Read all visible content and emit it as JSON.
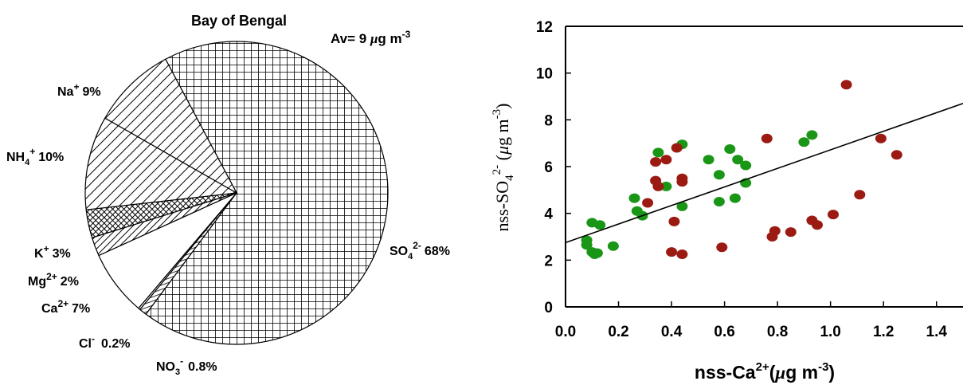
{
  "chart_data": [
    {
      "type": "pie",
      "title": "Bay of Bengal",
      "annotation": {
        "prefix": "Av= 9 ",
        "mu": "μ",
        "unit": "g m",
        "exp": "-3"
      },
      "slices": [
        {
          "ion": "SO",
          "sub": "4",
          "sup": "2-",
          "pct": "68%",
          "value": 68
        },
        {
          "ion": "NO",
          "sub": "3",
          "sup": "-",
          "pct": "0.8%",
          "value": 0.8
        },
        {
          "ion": "Cl",
          "sub": "",
          "sup": "-",
          "pct": "0.2%",
          "value": 0.2
        },
        {
          "ion": "Ca",
          "sub": "",
          "sup": "2+",
          "pct": "7%",
          "value": 7
        },
        {
          "ion": "Mg",
          "sub": "",
          "sup": "2+",
          "pct": "2%",
          "value": 2
        },
        {
          "ion": "K",
          "sub": "",
          "sup": "+",
          "pct": "3%",
          "value": 3
        },
        {
          "ion": "NH",
          "sub": "4",
          "sup": "+",
          "pct": "10%",
          "value": 10
        },
        {
          "ion": "Na",
          "sub": "",
          "sup": "+",
          "pct": "9%",
          "value": 9
        }
      ]
    },
    {
      "type": "scatter",
      "xlabel": {
        "main": "nss-Ca",
        "sup": "2+",
        "unit_open": "(",
        "mu": "μ",
        "unit": "g m",
        "exp": "-3",
        "close": ")"
      },
      "ylabel": {
        "main": "nss-SO",
        "sub": "4",
        "sup": "2-",
        "unit_open": " (",
        "mu": "μ",
        "unit": "g m",
        "exp": "-3",
        "close": ")"
      },
      "xlim": [
        0,
        1.5
      ],
      "ylim": [
        0,
        12
      ],
      "xticks": [
        "0.0",
        "0.2",
        "0.4",
        "0.6",
        "0.8",
        "1.0",
        "1.2",
        "1.4"
      ],
      "yticks": [
        "0",
        "2",
        "4",
        "6",
        "8",
        "10",
        "12"
      ],
      "grid": false,
      "trendline": {
        "x": [
          0,
          1.5
        ],
        "y": [
          2.75,
          8.7
        ]
      },
      "series": [
        {
          "color": "#1a9617",
          "points": [
            [
              0.08,
              2.85
            ],
            [
              0.08,
              2.65
            ],
            [
              0.1,
              3.6
            ],
            [
              0.1,
              2.35
            ],
            [
              0.11,
              2.25
            ],
            [
              0.12,
              2.3
            ],
            [
              0.13,
              3.5
            ],
            [
              0.18,
              2.6
            ],
            [
              0.26,
              4.65
            ],
            [
              0.27,
              4.1
            ],
            [
              0.29,
              3.9
            ],
            [
              0.35,
              6.6
            ],
            [
              0.38,
              5.15
            ],
            [
              0.44,
              6.95
            ],
            [
              0.44,
              4.3
            ],
            [
              0.54,
              6.3
            ],
            [
              0.58,
              5.65
            ],
            [
              0.58,
              4.5
            ],
            [
              0.62,
              6.75
            ],
            [
              0.64,
              4.65
            ],
            [
              0.65,
              6.3
            ],
            [
              0.68,
              6.05
            ],
            [
              0.68,
              5.3
            ],
            [
              0.9,
              7.05
            ],
            [
              0.93,
              7.35
            ]
          ]
        },
        {
          "color": "#9b1b12",
          "points": [
            [
              0.31,
              4.45
            ],
            [
              0.34,
              6.2
            ],
            [
              0.34,
              5.4
            ],
            [
              0.35,
              5.15
            ],
            [
              0.38,
              6.3
            ],
            [
              0.4,
              2.35
            ],
            [
              0.41,
              3.65
            ],
            [
              0.42,
              6.8
            ],
            [
              0.44,
              5.5
            ],
            [
              0.44,
              5.35
            ],
            [
              0.44,
              2.25
            ],
            [
              0.59,
              2.55
            ],
            [
              0.76,
              7.2
            ],
            [
              0.78,
              3.0
            ],
            [
              0.79,
              3.25
            ],
            [
              0.85,
              3.2
            ],
            [
              0.93,
              3.7
            ],
            [
              0.95,
              3.5
            ],
            [
              1.01,
              3.95
            ],
            [
              1.06,
              9.5
            ],
            [
              1.11,
              4.8
            ],
            [
              1.19,
              7.2
            ],
            [
              1.25,
              6.5
            ]
          ]
        }
      ]
    }
  ]
}
